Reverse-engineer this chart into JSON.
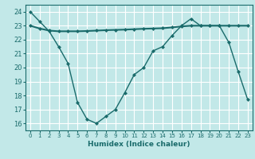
{
  "xlabel": "Humidex (Indice chaleur)",
  "bg_color": "#c2e8e8",
  "grid_color": "#ffffff",
  "line_color": "#1a6b6b",
  "xlim": [
    -0.5,
    23.5
  ],
  "ylim": [
    15.5,
    24.5
  ],
  "yticks": [
    16,
    17,
    18,
    19,
    20,
    21,
    22,
    23,
    24
  ],
  "xticks": [
    0,
    1,
    2,
    3,
    4,
    5,
    6,
    7,
    8,
    9,
    10,
    11,
    12,
    13,
    14,
    15,
    16,
    17,
    18,
    19,
    20,
    21,
    22,
    23
  ],
  "line1_x": [
    0,
    1,
    2,
    3,
    4,
    5,
    6,
    7,
    8,
    9,
    10,
    11,
    12,
    13,
    14,
    15,
    16,
    17,
    18,
    19,
    20,
    21,
    22,
    23
  ],
  "line1_y": [
    24.0,
    23.3,
    22.6,
    21.5,
    20.3,
    17.5,
    16.3,
    16.0,
    16.5,
    17.0,
    18.2,
    19.5,
    20.0,
    21.2,
    21.5,
    22.3,
    23.0,
    23.5,
    23.0,
    23.0,
    23.0,
    21.8,
    19.7,
    17.7
  ],
  "line2_x": [
    0,
    1,
    2,
    3,
    4,
    5,
    6,
    7,
    8,
    9,
    10,
    11,
    12,
    13,
    14,
    15,
    16,
    17,
    18,
    19,
    20,
    21,
    22,
    23
  ],
  "line2_y": [
    23.0,
    22.8,
    22.65,
    22.6,
    22.6,
    22.6,
    22.62,
    22.65,
    22.68,
    22.7,
    22.72,
    22.75,
    22.78,
    22.8,
    22.82,
    22.88,
    22.95,
    23.0,
    23.0,
    23.0,
    23.0,
    23.0,
    23.0,
    23.0
  ]
}
